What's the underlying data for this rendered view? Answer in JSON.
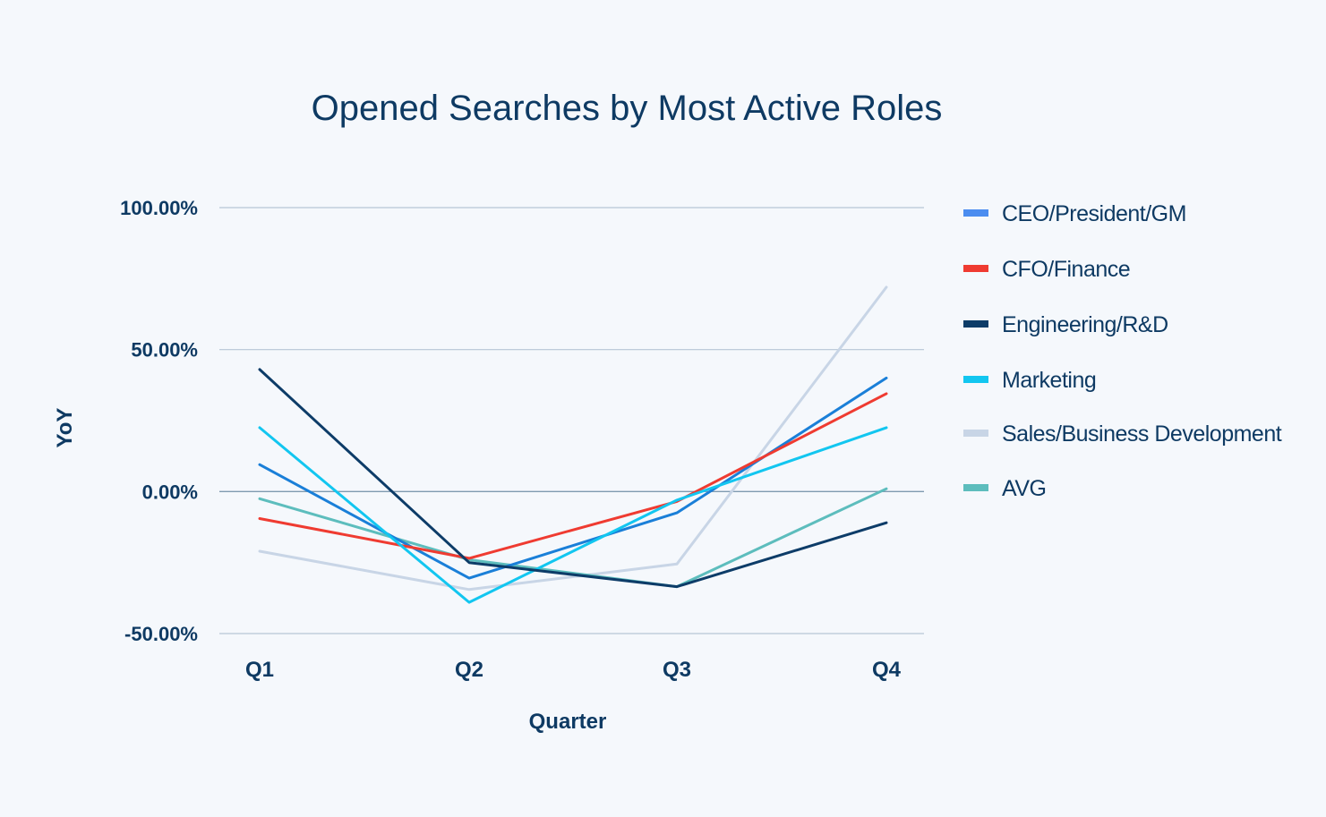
{
  "chart_data": {
    "type": "line",
    "title": "Opened Searches by Most Active Roles",
    "xlabel": "Quarter",
    "ylabel": "YoY",
    "categories": [
      "Q1",
      "Q2",
      "Q3",
      "Q4"
    ],
    "ylim": [
      -50,
      100
    ],
    "yticks": [
      -50,
      0,
      50,
      100
    ],
    "ytick_labels": [
      "-50.00%",
      "0.00%",
      "50.00%",
      "100.00%"
    ],
    "grid": true,
    "legend_position": "right",
    "series": [
      {
        "name": "CEO/President/GM",
        "color": "#1a7fd8",
        "legend_color": "#4b8df0",
        "values": [
          9.5,
          -30.5,
          -7.5,
          40
        ]
      },
      {
        "name": "CFO/Finance",
        "color": "#ef3b31",
        "legend_color": "#ef3b31",
        "values": [
          -9.5,
          -23.5,
          -3.5,
          34.5
        ]
      },
      {
        "name": "Engineering/R&D",
        "color": "#0d3c68",
        "legend_color": "#0d3c68",
        "values": [
          43,
          -25,
          -33.5,
          -11
        ]
      },
      {
        "name": "Marketing",
        "color": "#12c6f0",
        "legend_color": "#12c6f0",
        "values": [
          22.5,
          -39,
          -3,
          22.5
        ]
      },
      {
        "name": "Sales/Business Development",
        "color": "#c8d5e6",
        "legend_color": "#c8d5e6",
        "values": [
          -21,
          -34.5,
          -25.5,
          72
        ]
      },
      {
        "name": "AVG",
        "color": "#5dbdbd",
        "legend_color": "#5dbdbd",
        "values": [
          -2.5,
          -24,
          -33.5,
          1
        ]
      }
    ]
  }
}
